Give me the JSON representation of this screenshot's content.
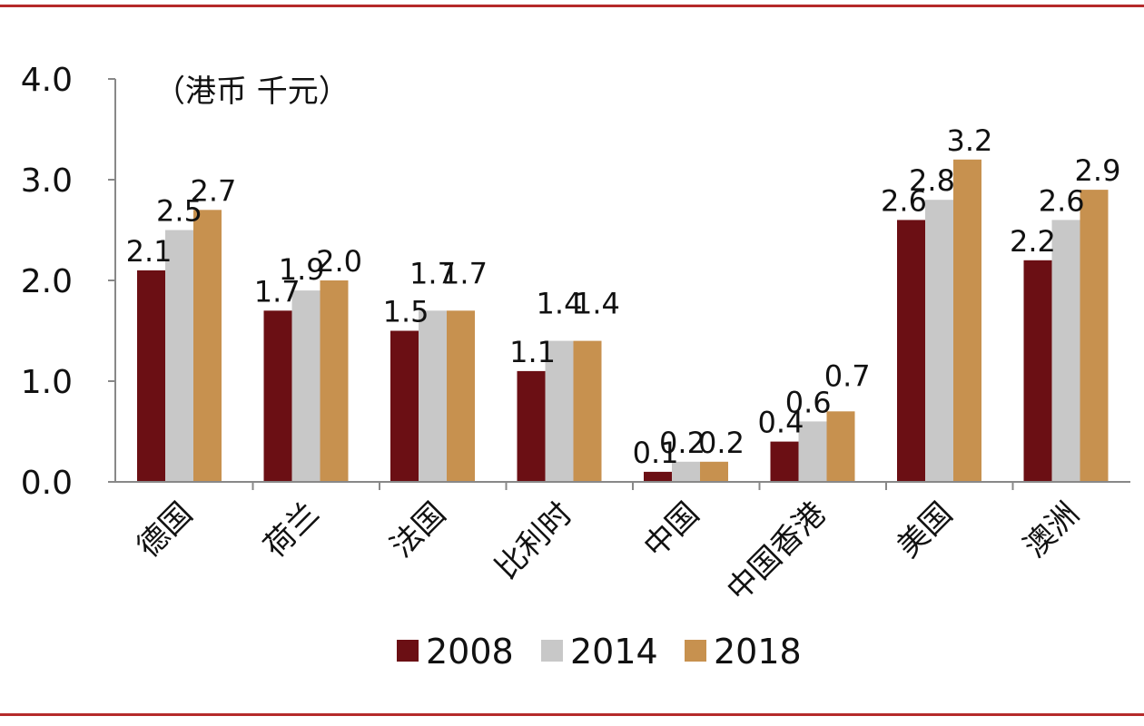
{
  "chart_data": {
    "type": "bar",
    "unit_label": "（港币 千元）",
    "categories": [
      "德国",
      "荷兰",
      "法国",
      "比利时",
      "中国",
      "中国香港",
      "美国",
      "澳洲"
    ],
    "series": [
      {
        "name": "2008",
        "color": "#6b0f14",
        "values": [
          2.1,
          1.7,
          1.5,
          1.1,
          0.1,
          0.4,
          2.6,
          2.2
        ]
      },
      {
        "name": "2014",
        "color": "#c8c8c8",
        "values": [
          2.5,
          1.9,
          1.7,
          1.4,
          0.2,
          0.6,
          2.8,
          2.6
        ]
      },
      {
        "name": "2018",
        "color": "#c7914f",
        "values": [
          2.7,
          2.0,
          1.7,
          1.4,
          0.2,
          0.7,
          3.2,
          2.9
        ]
      }
    ],
    "ylim": [
      0,
      4
    ],
    "yticks": [
      "0.0",
      "1.0",
      "2.0",
      "3.0",
      "4.0"
    ],
    "grid": false,
    "legend": "bottom-center"
  },
  "colors": {
    "frame_rule": "#b52a2a",
    "axis": "#888888"
  }
}
